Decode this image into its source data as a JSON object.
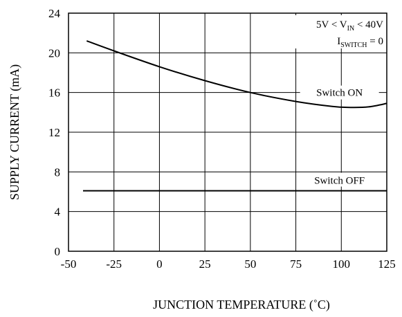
{
  "chart_data": {
    "type": "line",
    "xlabel": "JUNCTION TEMPERATURE (˚C)",
    "ylabel": "SUPPLY CURRENT   (mA)",
    "xlim": [
      -50,
      125
    ],
    "ylim": [
      0,
      24
    ],
    "x_ticks": [
      "-50",
      "-25",
      "0",
      "25",
      "50",
      "75",
      "100",
      "125"
    ],
    "y_ticks": [
      "0",
      "4",
      "8",
      "12",
      "16",
      "20",
      "24"
    ],
    "grid": true,
    "condition_lines": [
      {
        "text": "5V < V",
        "sub": "IN",
        "tail": " < 40V"
      },
      {
        "text": "I",
        "sub": "SWITCH",
        "tail": " = 0"
      }
    ],
    "series": [
      {
        "name": "Switch ON",
        "x": [
          -40,
          -25,
          0,
          25,
          50,
          75,
          95,
          105,
          115,
          125
        ],
        "y": [
          21.2,
          20.2,
          18.6,
          17.2,
          16.0,
          15.1,
          14.6,
          14.5,
          14.55,
          14.9
        ]
      },
      {
        "name": "Switch OFF",
        "x": [
          -42,
          125
        ],
        "y": [
          6.1,
          6.1
        ]
      }
    ]
  }
}
